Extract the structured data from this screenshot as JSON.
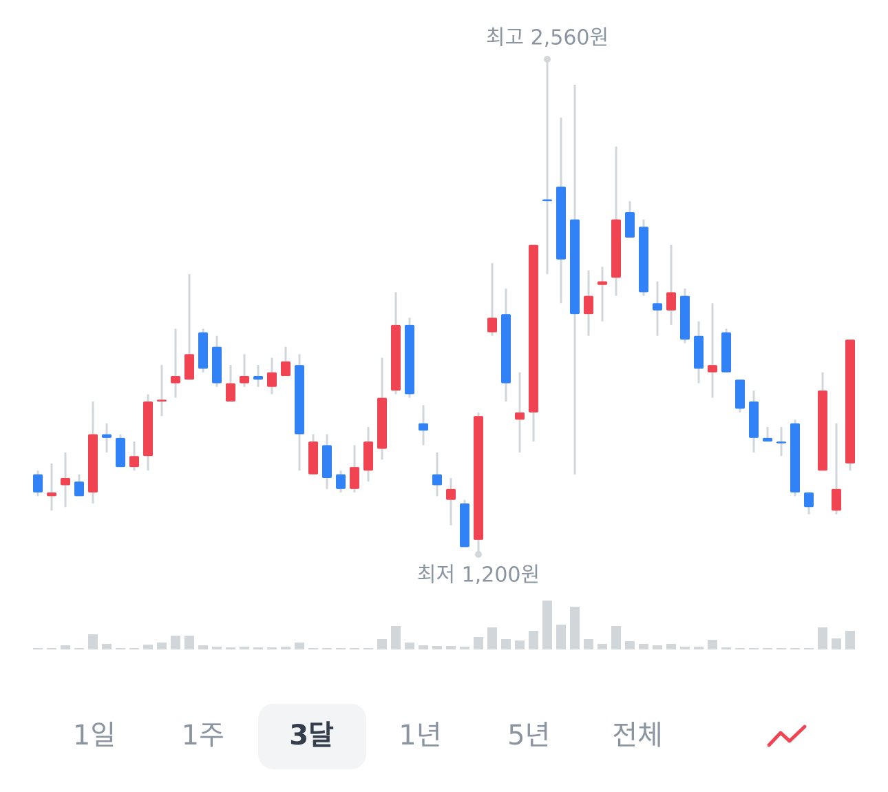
{
  "chart_data": {
    "type": "candlestick",
    "open": [
      1420,
      1360,
      1390,
      1400,
      1370,
      1530,
      1520,
      1440,
      1470,
      1620,
      1670,
      1680,
      1810,
      1770,
      1620,
      1670,
      1690,
      1660,
      1690,
      1720,
      1420,
      1500,
      1420,
      1380,
      1430,
      1490,
      1650,
      1830,
      1560,
      1420,
      1350,
      1340,
      1240,
      1810,
      1860,
      1570,
      1590,
      2175,
      2210,
      2120,
      1860,
      1940,
      1960,
      2140,
      2100,
      1890,
      1870,
      1910,
      1800,
      1700,
      1810,
      1680,
      1620,
      1520,
      1510,
      1560,
      1370,
      1430,
      1320,
      1450
    ],
    "high": [
      1430,
      1450,
      1480,
      1420,
      1620,
      1560,
      1530,
      1510,
      1640,
      1720,
      1820,
      1970,
      1820,
      1800,
      1720,
      1750,
      1720,
      1740,
      1770,
      1750,
      1530,
      1530,
      1430,
      1500,
      1550,
      1740,
      1920,
      1850,
      1610,
      1480,
      1410,
      1350,
      1590,
      2000,
      1930,
      1700,
      2050,
      2560,
      2400,
      2490,
      1980,
      1990,
      2320,
      2170,
      2120,
      1950,
      2050,
      1930,
      1840,
      1890,
      1820,
      1680,
      1650,
      1550,
      1550,
      1570,
      1370,
      1700,
      1560,
      1790
    ],
    "low": [
      1360,
      1320,
      1330,
      1360,
      1340,
      1480,
      1440,
      1430,
      1430,
      1580,
      1630,
      1680,
      1700,
      1660,
      1620,
      1660,
      1660,
      1640,
      1690,
      1430,
      1420,
      1380,
      1370,
      1370,
      1400,
      1460,
      1640,
      1630,
      1500,
      1360,
      1280,
      1220,
      1200,
      1800,
      1620,
      1480,
      1510,
      1970,
      1890,
      1420,
      1800,
      1840,
      1910,
      2070,
      1910,
      1800,
      1830,
      1780,
      1670,
      1630,
      1700,
      1590,
      1480,
      1510,
      1470,
      1360,
      1310,
      1430,
      1310,
      1430
    ],
    "close": [
      1370,
      1370,
      1410,
      1360,
      1530,
      1520,
      1440,
      1470,
      1620,
      1625,
      1690,
      1750,
      1710,
      1670,
      1670,
      1690,
      1680,
      1700,
      1730,
      1530,
      1510,
      1410,
      1380,
      1440,
      1510,
      1630,
      1830,
      1640,
      1540,
      1390,
      1380,
      1220,
      1580,
      1850,
      1670,
      1590,
      2050,
      2170,
      2010,
      1860,
      1910,
      1950,
      2120,
      2070,
      1920,
      1870,
      1920,
      1790,
      1710,
      1720,
      1700,
      1600,
      1520,
      1510,
      1505,
      1370,
      1330,
      1650,
      1380,
      1790
    ],
    "volume": [
      2,
      2,
      6,
      2,
      22,
      8,
      2,
      2,
      7,
      10,
      20,
      20,
      6,
      4,
      3,
      4,
      3,
      3,
      4,
      10,
      2,
      2,
      2,
      2,
      2,
      15,
      34,
      10,
      6,
      5,
      5,
      4,
      18,
      32,
      15,
      13,
      27,
      71,
      36,
      62,
      15,
      8,
      34,
      12,
      8,
      6,
      8,
      4,
      4,
      14,
      3,
      2,
      2,
      2,
      2,
      2,
      2,
      32,
      16,
      27
    ],
    "up_color": "#f04452",
    "down_color": "#3182f6",
    "wick_color": "#d1d6db",
    "volume_color": "#d1d6db",
    "annotations": [
      "최고 2,560원",
      "최저 1,200원"
    ]
  },
  "tabs": {
    "items": [
      "1일",
      "1주",
      "3달",
      "1년",
      "5년",
      "전체"
    ],
    "selected": 2
  }
}
